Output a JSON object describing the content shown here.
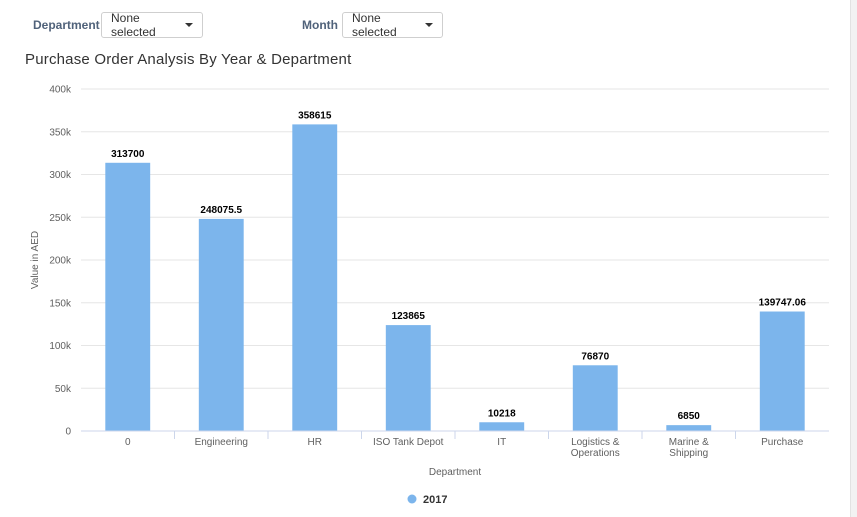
{
  "filters": {
    "department_label": "Department :",
    "department_value": "None selected",
    "month_label": "Month :",
    "month_value": "None selected"
  },
  "chart_data": {
    "type": "bar",
    "title": "Purchase Order Analysis By Year & Department",
    "xlabel": "Department",
    "ylabel": "Value in AED",
    "ylim": [
      0,
      400000
    ],
    "yticks": [
      "0",
      "50k",
      "100k",
      "150k",
      "200k",
      "250k",
      "300k",
      "350k",
      "400k"
    ],
    "grid": true,
    "legend_position": "bottom-center",
    "categories": [
      "0",
      "Engineering",
      "HR",
      "ISO Tank Depot",
      "IT",
      "Logistics & Operations",
      "Marine & Shipping",
      "Purchase"
    ],
    "series": [
      {
        "name": "2017",
        "color": "#7cb5ec",
        "values": [
          313700,
          248075.5,
          358615,
          123865,
          10218,
          76870,
          6850,
          139747.06
        ],
        "labels": [
          "313700",
          "248075.5",
          "358615",
          "123865",
          "10218",
          "76870",
          "6850",
          "139747.06"
        ]
      }
    ]
  }
}
